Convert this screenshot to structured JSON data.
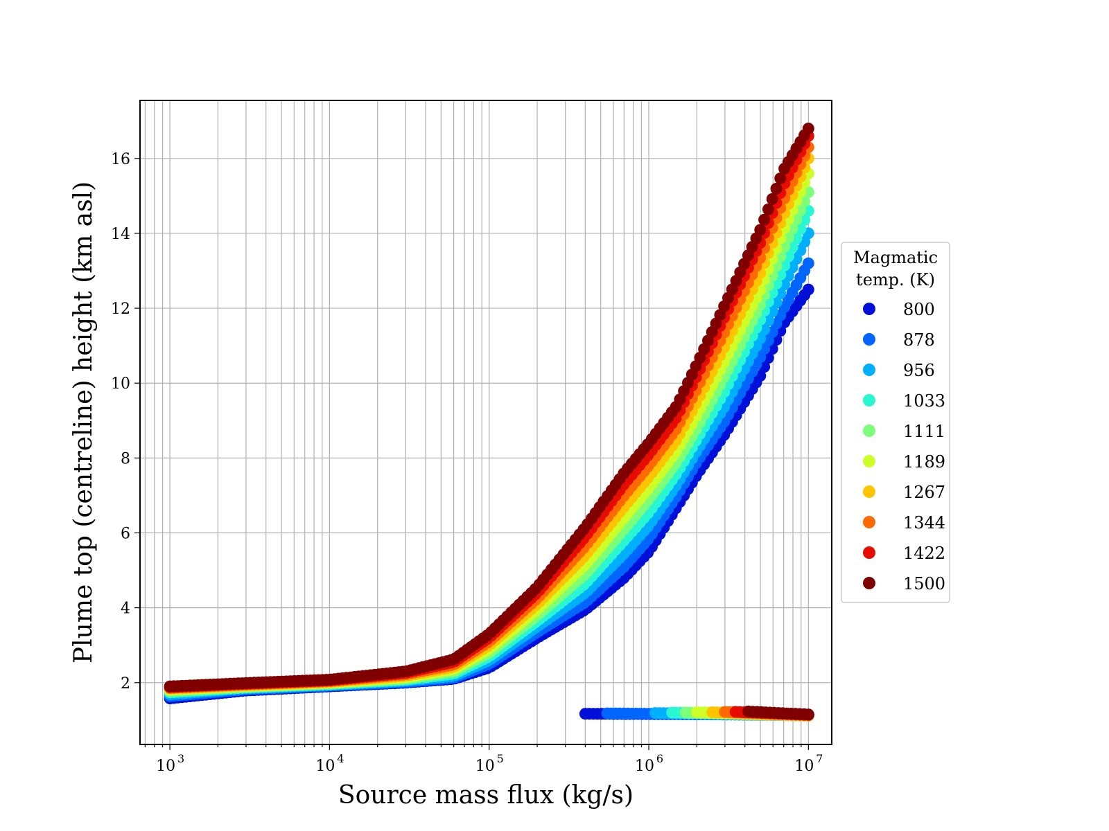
{
  "chart_data": {
    "type": "scatter",
    "xlabel": "Source mass flux (kg/s)",
    "ylabel": "Plume top (centreline) height (km asl)",
    "xscale": "log",
    "xlim": [
      650,
      14000000
    ],
    "ylim": [
      0.35,
      17.55
    ],
    "x_ticks": [
      {
        "value": 1000,
        "base": "10",
        "exp": "3"
      },
      {
        "value": 10000,
        "base": "10",
        "exp": "4"
      },
      {
        "value": 100000,
        "base": "10",
        "exp": "5"
      },
      {
        "value": 1000000,
        "base": "10",
        "exp": "6"
      },
      {
        "value": 10000000,
        "base": "10",
        "exp": "7"
      }
    ],
    "y_ticks": [
      2,
      4,
      6,
      8,
      10,
      12,
      14,
      16
    ],
    "grid": true,
    "legend": {
      "title_lines": [
        "Magmatic",
        "temp. (K)"
      ],
      "placement": "outside right"
    },
    "series": [
      {
        "name": "800",
        "color": "#0010d9",
        "main_curve": [
          [
            1000,
            1.58
          ],
          [
            3000,
            1.79
          ],
          [
            10000,
            1.9
          ],
          [
            30000,
            2.0
          ],
          [
            60000,
            2.1
          ],
          [
            100000,
            2.4
          ],
          [
            200000,
            3.2
          ],
          [
            400000,
            3.95
          ],
          [
            700000,
            4.8
          ],
          [
            1000000,
            5.5
          ],
          [
            1500000,
            6.7
          ],
          [
            2000000,
            7.55
          ],
          [
            3000000,
            8.65
          ],
          [
            5000000,
            10.2
          ],
          [
            7000000,
            11.6
          ],
          [
            10000000,
            12.5
          ]
        ],
        "low_branch": [
          [
            400000,
            1.17
          ],
          [
            10000000,
            1.14
          ]
        ]
      },
      {
        "name": "878",
        "color": "#0066ff",
        "main_curve": [
          [
            1000,
            1.64
          ],
          [
            3000,
            1.82
          ],
          [
            10000,
            1.92
          ],
          [
            30000,
            2.02
          ],
          [
            60000,
            2.13
          ],
          [
            100000,
            2.5
          ],
          [
            200000,
            3.35
          ],
          [
            400000,
            4.15
          ],
          [
            700000,
            5.1
          ],
          [
            1000000,
            5.85
          ],
          [
            1500000,
            7.0
          ],
          [
            2000000,
            7.9
          ],
          [
            3000000,
            9.0
          ],
          [
            5000000,
            10.7
          ],
          [
            7000000,
            12.0
          ],
          [
            10000000,
            13.2
          ]
        ],
        "low_branch": [
          [
            550000,
            1.18
          ],
          [
            10000000,
            1.13
          ]
        ]
      },
      {
        "name": "956",
        "color": "#00b0ff",
        "main_curve": [
          [
            1000,
            1.69
          ],
          [
            3000,
            1.85
          ],
          [
            10000,
            1.94
          ],
          [
            30000,
            2.05
          ],
          [
            60000,
            2.18
          ],
          [
            100000,
            2.6
          ],
          [
            200000,
            3.5
          ],
          [
            400000,
            4.4
          ],
          [
            700000,
            5.45
          ],
          [
            1000000,
            6.2
          ],
          [
            1500000,
            7.3
          ],
          [
            2000000,
            8.2
          ],
          [
            3000000,
            9.4
          ],
          [
            5000000,
            11.2
          ],
          [
            7000000,
            12.6
          ],
          [
            10000000,
            14.0
          ]
        ],
        "low_branch": [
          [
            1100000,
            1.19
          ],
          [
            10000000,
            1.12
          ]
        ]
      },
      {
        "name": "1033",
        "color": "#29f7d2",
        "main_curve": [
          [
            1000,
            1.74
          ],
          [
            3000,
            1.87
          ],
          [
            10000,
            1.96
          ],
          [
            30000,
            2.08
          ],
          [
            60000,
            2.24
          ],
          [
            100000,
            2.7
          ],
          [
            200000,
            3.65
          ],
          [
            400000,
            4.65
          ],
          [
            700000,
            5.8
          ],
          [
            1000000,
            6.55
          ],
          [
            1500000,
            7.6
          ],
          [
            2000000,
            8.5
          ],
          [
            3000000,
            9.8
          ],
          [
            5000000,
            11.7
          ],
          [
            7000000,
            13.1
          ],
          [
            10000000,
            14.6
          ]
        ],
        "low_branch": [
          [
            1400000,
            1.2
          ],
          [
            10000000,
            1.12
          ]
        ]
      },
      {
        "name": "1111",
        "color": "#7cff79",
        "main_curve": [
          [
            1000,
            1.78
          ],
          [
            3000,
            1.89
          ],
          [
            10000,
            1.98
          ],
          [
            30000,
            2.11
          ],
          [
            60000,
            2.3
          ],
          [
            100000,
            2.8
          ],
          [
            200000,
            3.8
          ],
          [
            400000,
            4.9
          ],
          [
            700000,
            6.1
          ],
          [
            1000000,
            6.9
          ],
          [
            1500000,
            7.9
          ],
          [
            2000000,
            8.8
          ],
          [
            3000000,
            10.2
          ],
          [
            5000000,
            12.1
          ],
          [
            7000000,
            13.6
          ],
          [
            10000000,
            15.1
          ]
        ],
        "low_branch": [
          [
            1700000,
            1.2
          ],
          [
            10000000,
            1.12
          ]
        ]
      },
      {
        "name": "1189",
        "color": "#cdff29",
        "main_curve": [
          [
            1000,
            1.81
          ],
          [
            3000,
            1.91
          ],
          [
            10000,
            2.0
          ],
          [
            30000,
            2.14
          ],
          [
            60000,
            2.36
          ],
          [
            100000,
            2.9
          ],
          [
            200000,
            3.95
          ],
          [
            400000,
            5.15
          ],
          [
            700000,
            6.4
          ],
          [
            1000000,
            7.2
          ],
          [
            1500000,
            8.2
          ],
          [
            2000000,
            9.15
          ],
          [
            3000000,
            10.6
          ],
          [
            5000000,
            12.5
          ],
          [
            7000000,
            14.1
          ],
          [
            10000000,
            15.6
          ]
        ],
        "low_branch": [
          [
            2000000,
            1.21
          ],
          [
            10000000,
            1.12
          ]
        ]
      },
      {
        "name": "1267",
        "color": "#ffc400",
        "main_curve": [
          [
            1000,
            1.84
          ],
          [
            3000,
            1.93
          ],
          [
            10000,
            2.02
          ],
          [
            30000,
            2.18
          ],
          [
            60000,
            2.42
          ],
          [
            100000,
            3.0
          ],
          [
            200000,
            4.1
          ],
          [
            400000,
            5.4
          ],
          [
            700000,
            6.7
          ],
          [
            1000000,
            7.5
          ],
          [
            1500000,
            8.5
          ],
          [
            2000000,
            9.5
          ],
          [
            3000000,
            11.0
          ],
          [
            5000000,
            12.95
          ],
          [
            7000000,
            14.5
          ],
          [
            10000000,
            16.0
          ]
        ],
        "low_branch": [
          [
            2500000,
            1.21
          ],
          [
            10000000,
            1.12
          ]
        ]
      },
      {
        "name": "1344",
        "color": "#ff6a00",
        "main_curve": [
          [
            1000,
            1.86
          ],
          [
            3000,
            1.95
          ],
          [
            10000,
            2.04
          ],
          [
            30000,
            2.22
          ],
          [
            60000,
            2.48
          ],
          [
            100000,
            3.1
          ],
          [
            200000,
            4.25
          ],
          [
            400000,
            5.65
          ],
          [
            700000,
            7.0
          ],
          [
            1000000,
            7.8
          ],
          [
            1500000,
            8.8
          ],
          [
            2000000,
            9.85
          ],
          [
            3000000,
            11.4
          ],
          [
            5000000,
            13.35
          ],
          [
            7000000,
            14.9
          ],
          [
            10000000,
            16.3
          ]
        ],
        "low_branch": [
          [
            3000000,
            1.22
          ],
          [
            10000000,
            1.13
          ]
        ]
      },
      {
        "name": "1422",
        "color": "#e80b00",
        "main_curve": [
          [
            1000,
            1.88
          ],
          [
            3000,
            1.97
          ],
          [
            10000,
            2.06
          ],
          [
            30000,
            2.26
          ],
          [
            60000,
            2.55
          ],
          [
            100000,
            3.2
          ],
          [
            200000,
            4.4
          ],
          [
            400000,
            5.9
          ],
          [
            700000,
            7.3
          ],
          [
            1000000,
            8.1
          ],
          [
            1500000,
            9.1
          ],
          [
            2000000,
            10.2
          ],
          [
            3000000,
            11.8
          ],
          [
            5000000,
            13.75
          ],
          [
            7000000,
            15.3
          ],
          [
            10000000,
            16.6
          ]
        ],
        "low_branch": [
          [
            3500000,
            1.22
          ],
          [
            10000000,
            1.14
          ]
        ]
      },
      {
        "name": "1500",
        "color": "#800000",
        "main_curve": [
          [
            1000,
            1.9
          ],
          [
            3000,
            1.99
          ],
          [
            10000,
            2.08
          ],
          [
            30000,
            2.3
          ],
          [
            60000,
            2.62
          ],
          [
            100000,
            3.3
          ],
          [
            200000,
            4.55
          ],
          [
            400000,
            6.15
          ],
          [
            700000,
            7.6
          ],
          [
            1000000,
            8.4
          ],
          [
            1500000,
            9.4
          ],
          [
            2000000,
            10.5
          ],
          [
            3000000,
            12.1
          ],
          [
            5000000,
            14.1
          ],
          [
            7000000,
            15.7
          ],
          [
            10000000,
            16.8
          ]
        ],
        "low_branch": [
          [
            4200000,
            1.23
          ],
          [
            10000000,
            1.15
          ]
        ]
      }
    ]
  }
}
